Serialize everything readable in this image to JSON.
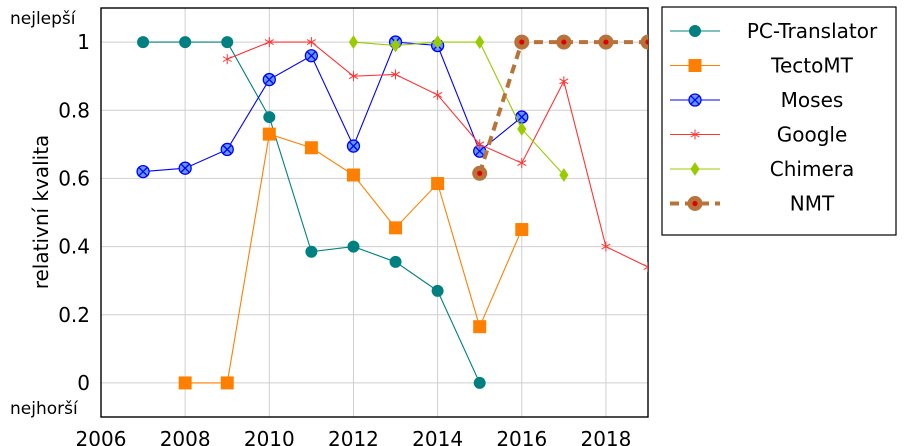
{
  "chart_data": {
    "type": "line",
    "title": "",
    "xlabel": "",
    "ylabel": "relativní kvalita",
    "xlim": [
      2006,
      2019
    ],
    "ylim": [
      -0.1,
      1.1
    ],
    "x_ticks": [
      2006,
      2008,
      2010,
      2012,
      2014,
      2016,
      2018
    ],
    "y_ticks": [
      0,
      0.2,
      0.4,
      0.6,
      0.8,
      1
    ],
    "y_top_label": "nejlepší",
    "y_bottom_label": "nejhorší",
    "grid": true,
    "legend_position": "right",
    "series": [
      {
        "name": "PC-Translator",
        "color": "#008080",
        "marker": "circle",
        "points": [
          [
            2007,
            1.0
          ],
          [
            2008,
            1.0
          ],
          [
            2009,
            1.0
          ],
          [
            2010,
            0.78
          ],
          [
            2011,
            0.385
          ],
          [
            2012,
            0.4
          ],
          [
            2013,
            0.355
          ],
          [
            2014,
            0.27
          ],
          [
            2015,
            0.0
          ]
        ]
      },
      {
        "name": "TectoMT",
        "color": "#ff8000",
        "marker": "square",
        "points": [
          [
            2008,
            0.0
          ],
          [
            2009,
            0.0
          ],
          [
            2010,
            0.73
          ],
          [
            2011,
            0.69
          ],
          [
            2012,
            0.61
          ],
          [
            2013,
            0.455
          ],
          [
            2014,
            0.585
          ],
          [
            2015,
            0.165
          ],
          [
            2016,
            0.45
          ]
        ]
      },
      {
        "name": "Moses",
        "color": "#0000ff",
        "marker": "otimes",
        "points": [
          [
            2007,
            0.62
          ],
          [
            2008,
            0.63
          ],
          [
            2009,
            0.685
          ],
          [
            2010,
            0.89
          ],
          [
            2011,
            0.96
          ],
          [
            2012,
            0.695
          ],
          [
            2013,
            1.0
          ],
          [
            2014,
            0.99
          ],
          [
            2015,
            0.68
          ],
          [
            2016,
            0.78
          ]
        ]
      },
      {
        "name": "Google",
        "color": "#ff3333",
        "marker": "star",
        "points": [
          [
            2009,
            0.95
          ],
          [
            2010,
            1.0
          ],
          [
            2011,
            1.0
          ],
          [
            2012,
            0.9
          ],
          [
            2013,
            0.905
          ],
          [
            2014,
            0.845
          ],
          [
            2015,
            0.7
          ],
          [
            2016,
            0.645
          ],
          [
            2017,
            0.885
          ],
          [
            2018,
            0.4
          ],
          [
            2019,
            0.34
          ]
        ]
      },
      {
        "name": "Chimera",
        "color": "#99cc00",
        "marker": "diamond",
        "points": [
          [
            2012,
            1.0
          ],
          [
            2013,
            0.99
          ],
          [
            2014,
            1.0
          ],
          [
            2015,
            1.0
          ],
          [
            2016,
            0.745
          ],
          [
            2017,
            0.61
          ]
        ]
      },
      {
        "name": "NMT",
        "color": "#b8733b",
        "marker": "circle-dot",
        "dashed": true,
        "points": [
          [
            2015,
            0.615
          ],
          [
            2016,
            1.0
          ],
          [
            2017,
            1.0
          ],
          [
            2018,
            1.0
          ],
          [
            2019,
            1.0
          ]
        ]
      }
    ]
  }
}
